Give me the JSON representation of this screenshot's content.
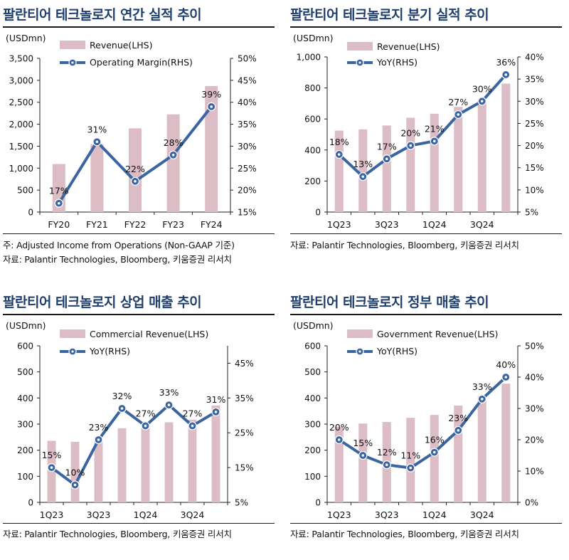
{
  "colors": {
    "bar": "#dcbcc5",
    "line": "#3a65a0",
    "title": "#1f3f6e",
    "axis": "#222222"
  },
  "panels": [
    {
      "title": "팔란티어 테크놀로지 연간 실적 추이",
      "notes": [
        "주: Adjusted Income from Operations (Non-GAAP 기준)",
        "자료: Palantir Technologies, Bloomberg, 키움증권 리서치"
      ]
    },
    {
      "title": "팔란티어 테크놀로지 분기 실적 추이",
      "notes": [
        "자료: Palantir Technologies, Bloomberg, 키움증권 리서치"
      ]
    },
    {
      "title": "팔란티어 테크놀로지 상업 매출 추이",
      "notes": [
        "자료: Palantir Technologies, Bloomberg, 키움증권 리서치"
      ]
    },
    {
      "title": "팔란티어 테크놀로지 정부 매출 추이",
      "notes": [
        "자료: Palantir Technologies, Bloomberg, 키움증권 리서치"
      ]
    }
  ],
  "chart_data": [
    {
      "type": "bar",
      "title": "팔란티어 테크놀로지 연간 실적 추이",
      "unit": "(USDmn)",
      "categories": [
        "FY20",
        "FY21",
        "FY22",
        "FY23",
        "FY24"
      ],
      "x_tick_labels": [
        "FY20",
        "FY21",
        "FY22",
        "FY23",
        "FY24"
      ],
      "series": [
        {
          "name": "Revenue(LHS)",
          "kind": "bar",
          "axis": "left",
          "values": [
            1093,
            1542,
            1906,
            2225,
            2870
          ]
        },
        {
          "name": "Operating Margin(RHS)",
          "kind": "line",
          "axis": "right",
          "values": [
            17,
            31,
            22,
            28,
            39
          ],
          "labels": [
            "17%",
            "31%",
            "22%",
            "28%",
            "39%"
          ]
        }
      ],
      "ylim_left": [
        0,
        3500
      ],
      "yticks_left": [
        "0",
        "500",
        "1,000",
        "1,500",
        "2,000",
        "2,500",
        "3,000",
        "3,500"
      ],
      "ylim_right": [
        15,
        50
      ],
      "yticks_right": [
        "15%",
        "20%",
        "25%",
        "30%",
        "35%",
        "40%",
        "45%",
        "50%"
      ],
      "legend": "top-left",
      "grid": false
    },
    {
      "type": "bar",
      "title": "팔란티어 테크놀로지 분기 실적 추이",
      "unit": "(USDmn)",
      "categories": [
        "1Q23",
        "2Q23",
        "3Q23",
        "4Q23",
        "1Q24",
        "2Q24",
        "3Q24",
        "4Q24"
      ],
      "x_tick_labels": [
        "1Q23",
        "",
        "3Q23",
        "",
        "1Q24",
        "",
        "3Q24",
        ""
      ],
      "series": [
        {
          "name": "Revenue(LHS)",
          "kind": "bar",
          "axis": "left",
          "values": [
            525,
            533,
            558,
            608,
            634,
            678,
            726,
            828
          ]
        },
        {
          "name": "YoY(RHS)",
          "kind": "line",
          "axis": "right",
          "values": [
            18,
            13,
            17,
            20,
            21,
            27,
            30,
            36
          ],
          "labels": [
            "18%",
            "13%",
            "17%",
            "20%",
            "21%",
            "27%",
            "30%",
            "36%"
          ]
        }
      ],
      "ylim_left": [
        0,
        1000
      ],
      "yticks_left": [
        "0",
        "200",
        "400",
        "600",
        "800",
        "1,000"
      ],
      "ylim_right": [
        5,
        40
      ],
      "yticks_right": [
        "5%",
        "10%",
        "15%",
        "20%",
        "25%",
        "30%",
        "35%",
        "40%"
      ],
      "legend": "top-left",
      "grid": false
    },
    {
      "type": "bar",
      "title": "팔란티어 테크놀로지 상업 매출 추이",
      "unit": "(USDmn)",
      "categories": [
        "1Q23",
        "2Q23",
        "3Q23",
        "4Q23",
        "1Q24",
        "2Q24",
        "3Q24",
        "4Q24"
      ],
      "x_tick_labels": [
        "1Q23",
        "",
        "3Q23",
        "",
        "1Q24",
        "",
        "3Q24",
        ""
      ],
      "series": [
        {
          "name": "Commercial Revenue(LHS)",
          "kind": "bar",
          "axis": "left",
          "values": [
            236,
            232,
            251,
            284,
            299,
            307,
            317,
            371
          ]
        },
        {
          "name": "YoY(RHS)",
          "kind": "line",
          "axis": "right",
          "values": [
            15,
            10,
            23,
            32,
            27,
            33,
            27,
            31
          ],
          "labels": [
            "15%",
            "10%",
            "23%",
            "32%",
            "27%",
            "33%",
            "27%",
            "31%"
          ]
        }
      ],
      "ylim_left": [
        0,
        600
      ],
      "yticks_left": [
        "0",
        "100",
        "200",
        "300",
        "400",
        "500",
        "600"
      ],
      "ylim_right": [
        5,
        50
      ],
      "yticks_right": [
        "5%",
        "15%",
        "25%",
        "35%",
        "45%"
      ],
      "legend": "top-left",
      "grid": false
    },
    {
      "type": "bar",
      "title": "팔란티어 테크놀로지 정부 매출 추이",
      "unit": "(USDmn)",
      "categories": [
        "1Q23",
        "2Q23",
        "3Q23",
        "4Q23",
        "1Q24",
        "2Q24",
        "3Q24",
        "4Q24"
      ],
      "x_tick_labels": [
        "1Q23",
        "",
        "3Q23",
        "",
        "1Q24",
        "",
        "3Q24",
        ""
      ],
      "series": [
        {
          "name": "Government Revenue(LHS)",
          "kind": "bar",
          "axis": "left",
          "values": [
            289,
            302,
            308,
            324,
            335,
            371,
            408,
            455
          ]
        },
        {
          "name": "YoY(RHS)",
          "kind": "line",
          "axis": "right",
          "values": [
            20,
            15,
            12,
            11,
            16,
            23,
            33,
            40
          ],
          "labels": [
            "20%",
            "15%",
            "12%",
            "11%",
            "16%",
            "23%",
            "33%",
            "40%"
          ]
        }
      ],
      "ylim_left": [
        0,
        600
      ],
      "yticks_left": [
        "0",
        "100",
        "200",
        "300",
        "400",
        "500",
        "600"
      ],
      "ylim_right": [
        0,
        50
      ],
      "yticks_right": [
        "0%",
        "10%",
        "20%",
        "30%",
        "40%",
        "50%"
      ],
      "legend": "top-left",
      "grid": false
    }
  ]
}
